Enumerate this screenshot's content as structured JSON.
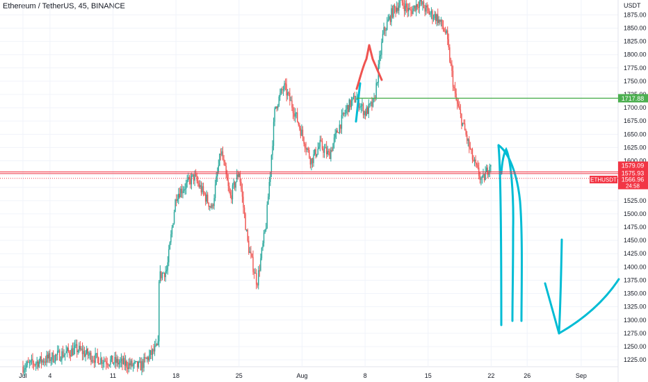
{
  "chart_data": {
    "type": "candlestick",
    "title": "Ethereum / TetherUS, 45, BINANCE",
    "currency": "USDT",
    "x_ticks": [
      "Jul",
      "4",
      "11",
      "18",
      "25",
      "Aug",
      "8",
      "15",
      "22",
      "26",
      "Sep"
    ],
    "y_ticks": [
      1225,
      1250,
      1275,
      1300,
      1325,
      1350,
      1375,
      1400,
      1425,
      1450,
      1475,
      1500,
      1525,
      1550,
      1575,
      1600,
      1625,
      1650,
      1675,
      1700,
      1725,
      1750,
      1775,
      1800,
      1825,
      1850,
      1875
    ],
    "ylim": [
      1212,
      1903
    ],
    "grid": true,
    "colors": {
      "up": "#26a69a",
      "down": "#ef5350",
      "level": "#4caf50",
      "ohlc_line": "#f23645",
      "drawing": "#00bcd4",
      "axis_text": "#131722"
    },
    "horizontal_level": {
      "value": 1717.88,
      "label": "1717.88"
    },
    "price_labels": [
      {
        "label": "1579.09",
        "value": 1579.09
      },
      {
        "label": "1575.93",
        "value": 1575.93
      },
      {
        "label": "1566.96",
        "value": 1566.96
      }
    ],
    "symbol_tag": {
      "symbol": "ETHUSDT",
      "price": "1566.96",
      "countdown": "24:58"
    },
    "price_path": [
      {
        "date": "Jul 1",
        "value": 1212
      },
      {
        "date": "Jul 7",
        "value": 1245
      },
      {
        "date": "Jul 9",
        "value": 1228
      },
      {
        "date": "Jul 14",
        "value": 1212
      },
      {
        "date": "Jul 16",
        "value": 1250
      },
      {
        "date": "Jul 16",
        "value": 1380
      },
      {
        "date": "Jul 17",
        "value": 1395
      },
      {
        "date": "Jul 18",
        "value": 1535
      },
      {
        "date": "Jul 20",
        "value": 1570
      },
      {
        "date": "Jul 22",
        "value": 1510
      },
      {
        "date": "Jul 23",
        "value": 1620
      },
      {
        "date": "Jul 24",
        "value": 1530
      },
      {
        "date": "Jul 25",
        "value": 1580
      },
      {
        "date": "Jul 26",
        "value": 1440
      },
      {
        "date": "Jul 27",
        "value": 1370
      },
      {
        "date": "Jul 28",
        "value": 1480
      },
      {
        "date": "Jul 29",
        "value": 1700
      },
      {
        "date": "Jul 30",
        "value": 1740
      },
      {
        "date": "Jul 31",
        "value": 1700
      },
      {
        "date": "Aug 1",
        "value": 1650
      },
      {
        "date": "Aug 2",
        "value": 1600
      },
      {
        "date": "Aug 3",
        "value": 1630
      },
      {
        "date": "Aug 4",
        "value": 1610
      },
      {
        "date": "Aug 5",
        "value": 1660
      },
      {
        "date": "Aug 6",
        "value": 1700
      },
      {
        "date": "Aug 7",
        "value": 1720
      },
      {
        "date": "Aug 8",
        "value": 1690
      },
      {
        "date": "Aug 9",
        "value": 1710
      },
      {
        "date": "Aug 10",
        "value": 1840
      },
      {
        "date": "Aug 11",
        "value": 1880
      },
      {
        "date": "Aug 12",
        "value": 1900
      },
      {
        "date": "Aug 13",
        "value": 1880
      },
      {
        "date": "Aug 14",
        "value": 1900
      },
      {
        "date": "Aug 15",
        "value": 1880
      },
      {
        "date": "Aug 16",
        "value": 1870
      },
      {
        "date": "Aug 17",
        "value": 1840
      },
      {
        "date": "Aug 18",
        "value": 1720
      },
      {
        "date": "Aug 19",
        "value": 1660
      },
      {
        "date": "Aug 20",
        "value": 1600
      },
      {
        "date": "Aug 21",
        "value": 1560
      },
      {
        "date": "Aug 22",
        "value": 1600
      },
      {
        "date": "Aug 22",
        "value": 1567
      }
    ]
  }
}
